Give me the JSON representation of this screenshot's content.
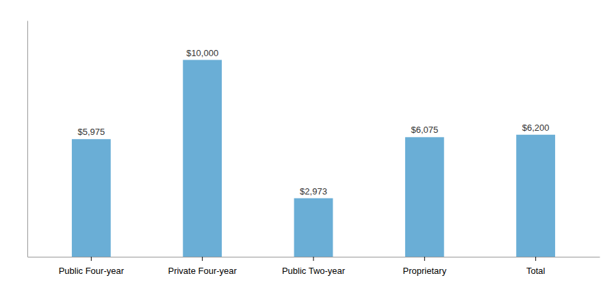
{
  "chart_data": {
    "type": "bar",
    "categories": [
      "Public Four-year",
      "Private Four-year",
      "Public Two-year",
      "Proprietary",
      "Total"
    ],
    "values": [
      5975,
      10000,
      2973,
      6075,
      6200
    ],
    "value_labels": [
      "$5,975",
      "$10,000",
      "$2,973",
      "$6,075",
      "$6,200"
    ],
    "color": "#6aaed6",
    "ylim": [
      0,
      12000
    ],
    "data_labels": true,
    "tick_labels": "x"
  }
}
